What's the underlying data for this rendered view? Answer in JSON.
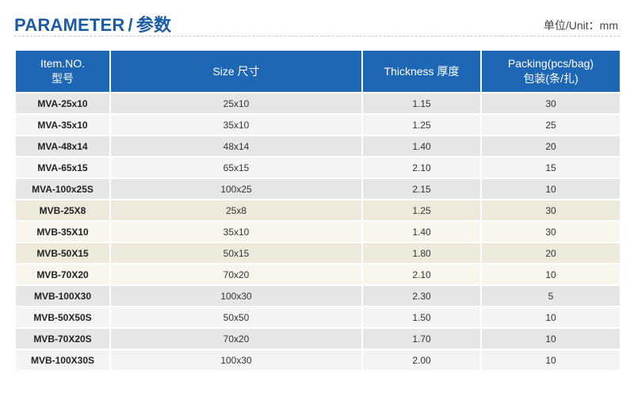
{
  "header": {
    "title_en": "PARAMETER",
    "separator": "/",
    "title_cn": "参数",
    "unit": "单位/Unit：mm"
  },
  "colors": {
    "accent": "#1a5da6",
    "header_fill": "#1d67b4",
    "row_gray": "#e6e6e6",
    "row_gray_light": "#f4f4f4",
    "row_beige": "#eeeadb",
    "row_beige_light": "#f8f6ec"
  },
  "table": {
    "columns": [
      {
        "line1": "Item.NO.",
        "line2": "型号"
      },
      {
        "line1": "Size 尺寸",
        "line2": ""
      },
      {
        "line1": "Thickness 厚度",
        "line2": ""
      },
      {
        "line1": "Packing(pcs/bag)",
        "line2": "包装(条/扎)"
      }
    ],
    "rows": [
      {
        "item": "MVA-25x10",
        "size": "25x10",
        "thickness": "1.15",
        "packing": "30",
        "group": "A"
      },
      {
        "item": "MVA-35x10",
        "size": "35x10",
        "thickness": "1.25",
        "packing": "25",
        "group": "A"
      },
      {
        "item": "MVA-48x14",
        "size": "48x14",
        "thickness": "1.40",
        "packing": "20",
        "group": "A"
      },
      {
        "item": "MVA-65x15",
        "size": "65x15",
        "thickness": "2.10",
        "packing": "15",
        "group": "A"
      },
      {
        "item": "MVA-100x25S",
        "size": "100x25",
        "thickness": "2.15",
        "packing": "10",
        "group": "A"
      },
      {
        "item": "MVB-25X8",
        "size": "25x8",
        "thickness": "1.25",
        "packing": "30",
        "group": "B"
      },
      {
        "item": "MVB-35X10",
        "size": "35x10",
        "thickness": "1.40",
        "packing": "30",
        "group": "B"
      },
      {
        "item": "MVB-50X15",
        "size": "50x15",
        "thickness": "1.80",
        "packing": "20",
        "group": "B"
      },
      {
        "item": "MVB-70X20",
        "size": "70x20",
        "thickness": "2.10",
        "packing": "10",
        "group": "B"
      },
      {
        "item": "MVB-100X30",
        "size": "100x30",
        "thickness": "2.30",
        "packing": "5",
        "group": "A"
      },
      {
        "item": "MVB-50X50S",
        "size": "50x50",
        "thickness": "1.50",
        "packing": "10",
        "group": "A"
      },
      {
        "item": "MVB-70X20S",
        "size": "70x20",
        "thickness": "1.70",
        "packing": "10",
        "group": "A"
      },
      {
        "item": "MVB-100X30S",
        "size": "100x30",
        "thickness": "2.00",
        "packing": "10",
        "group": "A"
      }
    ]
  }
}
